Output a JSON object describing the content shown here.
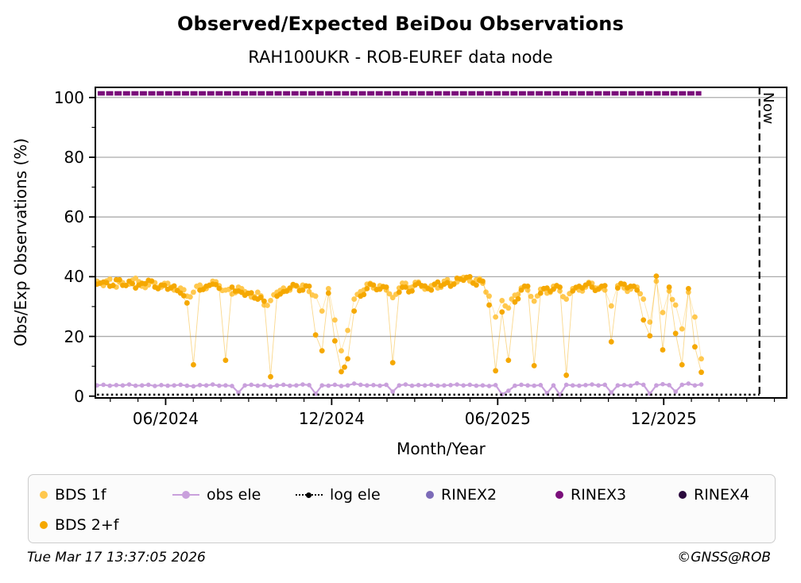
{
  "title": "Observed/Expected BeiDou Observations",
  "subtitle": "RAH100UKR - ROB-EUREF data node",
  "now_label": "Now",
  "footer": {
    "timestamp": "Tue Mar 17 13:37:05 2026",
    "credit": "©GNSS@ROB"
  },
  "legend": {
    "items": [
      {
        "label": "BDS 1f",
        "marker": "dot",
        "color": "#FFC84E"
      },
      {
        "label": "obs ele",
        "marker": "linedot",
        "color": "#C9A0DC"
      },
      {
        "label": "log ele",
        "marker": "dotline",
        "color": "#000000"
      },
      {
        "label": "RINEX2",
        "marker": "dot",
        "color": "#7C6BB8"
      },
      {
        "label": "RINEX3",
        "marker": "dot",
        "color": "#7A0E7A"
      },
      {
        "label": "RINEX4",
        "marker": "dot",
        "color": "#2B0A3D"
      },
      {
        "label": "BDS 2+f",
        "marker": "dot",
        "color": "#F5A800"
      }
    ]
  },
  "chart_data": {
    "type": "scatter",
    "title": "Observed/Expected BeiDou Observations",
    "subtitle": "RAH100UKR - ROB-EUREF data node",
    "xlabel": "Month/Year",
    "ylabel": "Obs/Exp Observations (%)",
    "xlim": [
      2024.205,
      2026.287
    ],
    "ylim": [
      -0.6,
      103.4
    ],
    "grid": "horizontal-only",
    "grid_y": [
      20,
      40,
      60,
      80,
      100
    ],
    "grid_color": "#ababab",
    "x_ticks": [
      {
        "value": 2024.4167,
        "label": "06/2024"
      },
      {
        "value": 2024.9167,
        "label": "12/2024"
      },
      {
        "value": 2025.4167,
        "label": "06/2025"
      },
      {
        "value": 2025.9167,
        "label": "12/2025"
      }
    ],
    "x_minor_start": 2024.25,
    "x_minor_step": 0.0833333,
    "y_ticks": [
      {
        "value": 0,
        "label": "0"
      },
      {
        "value": 20,
        "label": "20"
      },
      {
        "value": 40,
        "label": "40"
      },
      {
        "value": 60,
        "label": "60"
      },
      {
        "value": 80,
        "label": "80"
      },
      {
        "value": 100,
        "label": "100"
      }
    ],
    "y_minor": [
      10,
      30,
      50,
      70,
      90
    ],
    "now_x": 2026.205,
    "series": [
      {
        "name": "BDS 1f",
        "type": "scatter-line",
        "color": "#FFC84E",
        "x_start": 2024.21,
        "x_step": 0.01936,
        "values": [
          38.5,
          37.0,
          39.2,
          36.5,
          38.0,
          37.5,
          39.5,
          36.8,
          37.2,
          38.0,
          36.5,
          37.8,
          35.5,
          36.2,
          33.5,
          34.8,
          37.2,
          36.0,
          38.5,
          37.0,
          35.5,
          34.2,
          36.5,
          35.0,
          33.2,
          34.8,
          30.5,
          32.0,
          34.8,
          36.2,
          35.5,
          36.8,
          37.2,
          35.0,
          33.5,
          28.5,
          36.0,
          25.5,
          15.2,
          22.0,
          32.5,
          35.0,
          37.5,
          36.2,
          37.0,
          35.5,
          33.0,
          36.2,
          37.8,
          36.5,
          38.2,
          35.8,
          37.0,
          36.2,
          38.5,
          37.8,
          38.2,
          39.8,
          38.5,
          39.0,
          37.8,
          33.5,
          26.5,
          32.0,
          29.5,
          33.8,
          36.2,
          35.5,
          31.8,
          35.8,
          34.5,
          36.8,
          35.2,
          32.5,
          36.0,
          35.5,
          36.5,
          37.8,
          36.2,
          35.5,
          30.2,
          37.0,
          36.2,
          35.8,
          36.5,
          32.5,
          24.8,
          38.5,
          28.0,
          35.2,
          30.5,
          22.5,
          34.8,
          26.5,
          12.5
        ]
      },
      {
        "name": "BDS 2+f",
        "type": "scatter-line",
        "color": "#F5A800",
        "x_start": 2024.21,
        "x_step": 0.01936,
        "values": [
          37.5,
          38.2,
          36.8,
          39.0,
          37.1,
          38.5,
          36.2,
          37.8,
          38.8,
          36.5,
          37.2,
          35.8,
          36.9,
          34.5,
          31.2,
          10.5,
          35.5,
          36.8,
          37.5,
          36.1,
          12.0,
          36.5,
          35.2,
          33.8,
          34.6,
          32.5,
          31.8,
          6.5,
          33.5,
          35.0,
          36.2,
          37.0,
          35.5,
          36.8,
          20.5,
          15.2,
          34.5,
          18.5,
          8.2,
          12.5,
          28.5,
          33.5,
          36.0,
          37.2,
          35.8,
          36.5,
          11.2,
          34.8,
          36.5,
          35.2,
          37.8,
          36.9,
          35.5,
          38.2,
          37.5,
          36.8,
          39.5,
          38.8,
          40.0,
          37.2,
          38.5,
          30.5,
          8.5,
          28.2,
          12.0,
          31.5,
          35.5,
          36.8,
          10.2,
          34.5,
          36.2,
          35.8,
          36.5,
          7.0,
          35.2,
          36.8,
          37.2,
          36.5,
          35.8,
          37.0,
          18.2,
          36.2,
          37.5,
          36.8,
          35.5,
          25.5,
          20.2,
          40.2,
          15.5,
          36.5,
          21.0,
          10.5,
          36.0,
          16.5,
          8.0
        ]
      },
      {
        "name": "obs ele",
        "type": "line-dots",
        "color": "#C9A0DC",
        "x_start": 2024.21,
        "x_step": 0.01936,
        "values": [
          3.6,
          3.8,
          3.5,
          3.7,
          3.6,
          3.9,
          3.5,
          3.6,
          3.8,
          3.4,
          3.7,
          3.5,
          3.6,
          3.8,
          3.5,
          3.3,
          3.7,
          3.6,
          3.9,
          3.5,
          3.6,
          3.4,
          1.2,
          3.6,
          3.8,
          3.5,
          3.7,
          3.2,
          3.6,
          3.8,
          3.5,
          3.6,
          3.9,
          3.7,
          0.8,
          3.6,
          3.5,
          3.8,
          3.4,
          3.6,
          4.2,
          3.8,
          3.6,
          3.7,
          3.5,
          3.8,
          1.5,
          3.6,
          3.9,
          3.5,
          3.7,
          3.6,
          3.8,
          3.5,
          3.6,
          3.7,
          3.9,
          3.6,
          3.8,
          3.5,
          3.6,
          3.4,
          3.7,
          0.6,
          1.8,
          3.5,
          3.8,
          3.6,
          3.5,
          3.7,
          1.0,
          3.6,
          0.5,
          3.8,
          3.6,
          3.5,
          3.7,
          3.9,
          3.6,
          3.8,
          1.2,
          3.6,
          3.7,
          3.5,
          4.3,
          3.8,
          0.8,
          3.6,
          4.0,
          3.7,
          1.5,
          3.8,
          4.2,
          3.6,
          3.9
        ]
      },
      {
        "name": "log ele",
        "type": "dotted-line",
        "color": "#000000",
        "points": [
          [
            2024.21,
            0.5
          ],
          [
            2026.205,
            0.5
          ]
        ]
      },
      {
        "name": "RINEX2",
        "type": "scatter",
        "color": "#7C6BB8",
        "values": []
      },
      {
        "name": "RINEX3",
        "type": "thick-band",
        "color": "#7A0E7A",
        "points": [
          [
            2024.212,
            101.4
          ],
          [
            2026.03,
            101.4
          ]
        ]
      },
      {
        "name": "RINEX4",
        "type": "scatter",
        "color": "#2B0A3D",
        "values": []
      }
    ]
  }
}
